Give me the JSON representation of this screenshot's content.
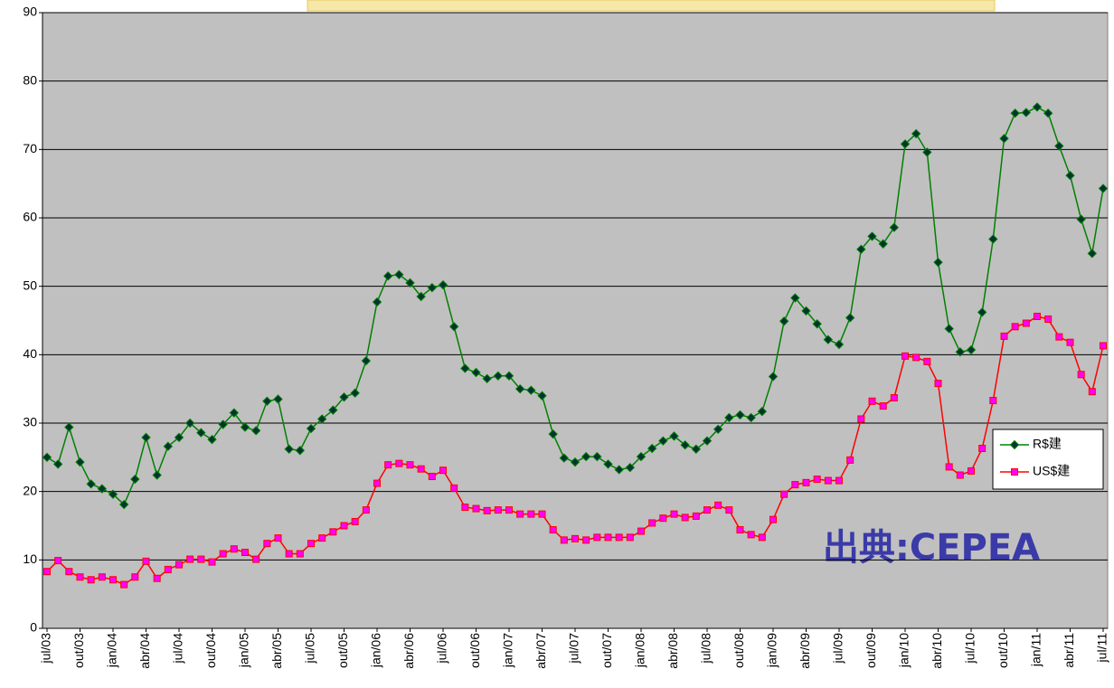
{
  "chart_data": {
    "type": "line",
    "categories": [
      "jul/03",
      null,
      null,
      "out/03",
      null,
      null,
      "jan/04",
      null,
      null,
      "abr/04",
      null,
      null,
      "jul/04",
      null,
      null,
      "out/04",
      null,
      null,
      "jan/05",
      null,
      null,
      "abr/05",
      null,
      null,
      "jul/05",
      null,
      null,
      "out/05",
      null,
      null,
      "jan/06",
      null,
      null,
      "abr/06",
      null,
      null,
      "jul/06",
      null,
      null,
      "out/06",
      null,
      null,
      "jan/07",
      null,
      null,
      "abr/07",
      null,
      null,
      "jul/07",
      null,
      null,
      "out/07",
      null,
      null,
      "jan/08",
      null,
      null,
      "abr/08",
      null,
      null,
      "jul/08",
      null,
      null,
      "out/08",
      null,
      null,
      "jan/09",
      null,
      null,
      "abr/09",
      null,
      null,
      "jul/09",
      null,
      null,
      "out/09",
      null,
      null,
      "jan/10",
      null,
      null,
      "abr/10",
      null,
      null,
      "jul/10",
      null,
      null,
      "out/10",
      null,
      null,
      "jan/11",
      null,
      null,
      "abr/11",
      null,
      null,
      "jul/11"
    ],
    "series": [
      {
        "name": "R$建",
        "color": "#008000",
        "marker": "diamond",
        "marker_color": "#003333",
        "values": [
          25.0,
          24.0,
          29.4,
          24.3,
          21.1,
          20.4,
          19.6,
          18.1,
          21.8,
          27.9,
          22.4,
          26.6,
          27.9,
          30.0,
          28.6,
          27.6,
          29.8,
          31.5,
          29.4,
          28.9,
          33.2,
          33.5,
          26.2,
          26.0,
          29.2,
          30.6,
          31.9,
          33.8,
          34.4,
          39.1,
          47.7,
          51.5,
          51.7,
          50.5,
          48.5,
          49.8,
          50.2,
          44.1,
          38.0,
          37.4,
          36.5,
          36.9,
          36.9,
          35.0,
          34.8,
          34.0,
          28.4,
          24.9,
          24.3,
          25.1,
          25.1,
          24.0,
          23.2,
          23.5,
          25.1,
          26.3,
          27.4,
          28.1,
          26.8,
          26.2,
          27.4,
          29.1,
          30.8,
          31.2,
          30.8,
          31.7,
          36.8,
          44.9,
          48.3,
          46.4,
          44.5,
          42.2,
          41.5,
          45.4,
          55.4,
          57.3,
          56.2,
          58.6,
          70.8,
          72.3,
          69.6,
          53.5,
          43.8,
          40.4,
          40.7,
          46.2,
          56.9,
          71.6,
          75.3,
          75.4,
          76.2,
          75.3,
          70.5,
          66.2,
          59.8,
          54.8,
          64.3
        ]
      },
      {
        "name": "US$建",
        "color": "#ff0000",
        "marker": "square",
        "marker_color": "#ff00ff",
        "values": [
          8.3,
          9.9,
          8.3,
          7.5,
          7.1,
          7.5,
          7.1,
          6.4,
          7.5,
          9.8,
          7.3,
          8.6,
          9.3,
          10.1,
          10.1,
          9.7,
          10.9,
          11.6,
          11.1,
          10.1,
          12.4,
          13.2,
          10.9,
          10.9,
          12.4,
          13.2,
          14.1,
          15.0,
          15.6,
          17.3,
          21.2,
          23.9,
          24.1,
          23.9,
          23.3,
          22.2,
          23.1,
          20.5,
          17.7,
          17.5,
          17.2,
          17.3,
          17.3,
          16.7,
          16.7,
          16.7,
          14.4,
          12.9,
          13.1,
          12.9,
          13.3,
          13.3,
          13.3,
          13.3,
          14.2,
          15.4,
          16.1,
          16.7,
          16.2,
          16.4,
          17.3,
          18.0,
          17.3,
          14.4,
          13.7,
          13.3,
          15.9,
          19.6,
          21.0,
          21.3,
          21.8,
          21.6,
          21.6,
          24.6,
          30.6,
          33.2,
          32.5,
          33.7,
          39.8,
          39.6,
          39.0,
          35.8,
          23.6,
          22.4,
          23.0,
          26.3,
          33.3,
          42.7,
          44.1,
          44.6,
          45.6,
          45.2,
          42.6,
          41.8,
          37.1,
          34.6,
          41.3
        ]
      }
    ],
    "ylim": [
      0,
      90
    ],
    "yticks": [
      0,
      10,
      20,
      30,
      40,
      50,
      60,
      70,
      80,
      90
    ],
    "grid": true,
    "plot_background": "#c0c0c0",
    "legend": "right",
    "annotation": "出典:CEPEA"
  }
}
